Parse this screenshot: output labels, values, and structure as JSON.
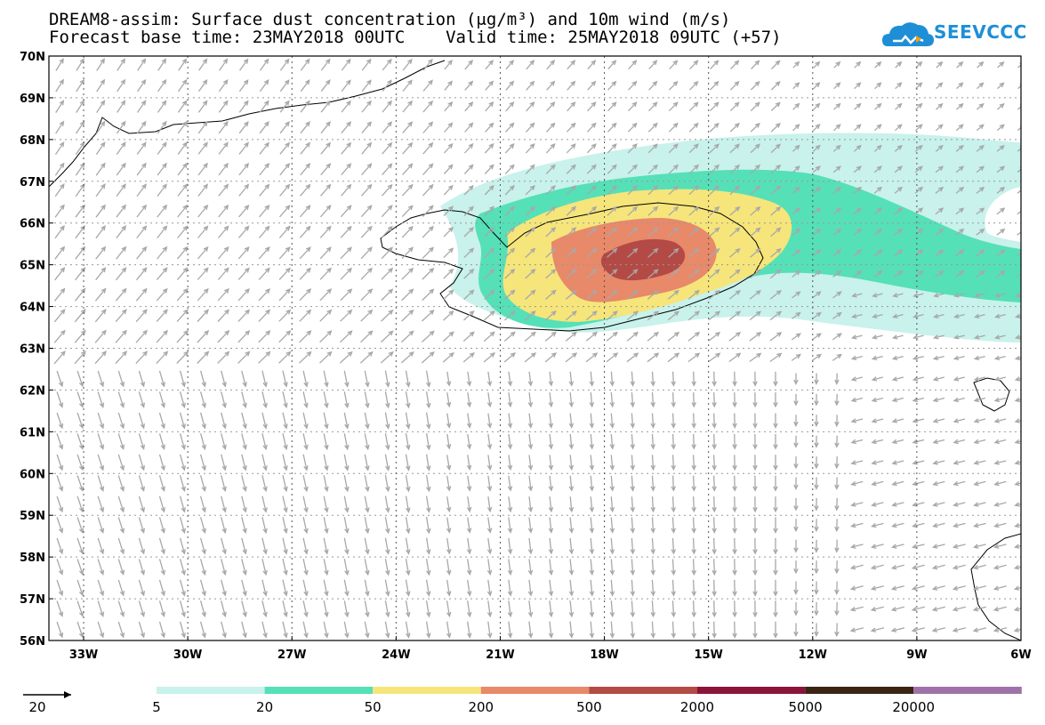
{
  "title": {
    "line1": "DREAM8-assim: Surface dust concentration (μg/m³) and 10m wind (m/s)",
    "line2": "Forecast base time: 23MAY2018 00UTC    Valid time: 25MAY2018 09UTC (+57)"
  },
  "logo": {
    "text": "SEEVCCC",
    "icon": "cloud-logo-icon",
    "color": "#1e8fd6"
  },
  "map": {
    "lat_labels": [
      "70N",
      "69N",
      "68N",
      "67N",
      "66N",
      "65N",
      "64N",
      "63N",
      "62N",
      "61N",
      "60N",
      "59N",
      "58N",
      "57N",
      "56N"
    ],
    "lon_labels": [
      "33W",
      "30W",
      "27W",
      "24W",
      "21W",
      "18W",
      "15W",
      "12W",
      "9W",
      "6W"
    ],
    "lat_range": [
      56,
      70
    ],
    "lon_range": [
      -34,
      -6
    ],
    "grid": "dotted",
    "wind_arrow_color": "#a8a8a8"
  },
  "dust_levels": {
    "level_5_color": "#c8f2eb",
    "level_20_color": "#55e0b8",
    "level_50_color": "#f6e57a",
    "level_200_color": "#e8896a",
    "level_500_color": "#b44a45"
  },
  "legend": {
    "wind_reference": "20",
    "bins": [
      {
        "label": "5",
        "color": "#c8f2eb"
      },
      {
        "label": "20",
        "color": "#55e0b8"
      },
      {
        "label": "50",
        "color": "#f6e57a"
      },
      {
        "label": "200",
        "color": "#e8896a"
      },
      {
        "label": "500",
        "color": "#b44a45"
      },
      {
        "label": "2000",
        "color": "#8b1538"
      },
      {
        "label": "5000",
        "color": "#3a2413"
      },
      {
        "label": "20000",
        "color": "#9e72a8"
      }
    ]
  }
}
